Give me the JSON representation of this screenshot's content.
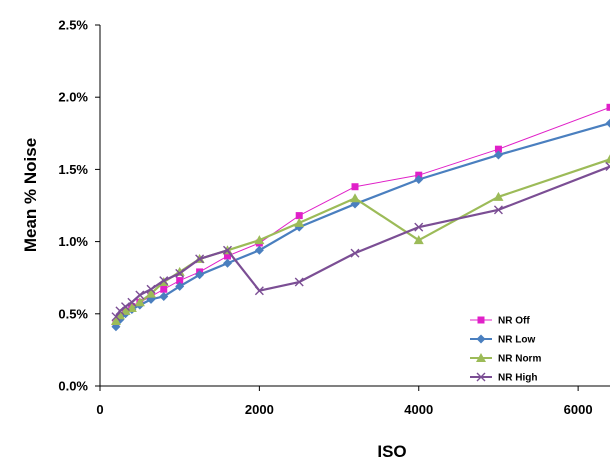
{
  "chart_data": {
    "type": "line",
    "xlabel": "ISO",
    "ylabel": "Mean % Noise",
    "xlim": [
      0,
      6400
    ],
    "ylim": [
      0,
      2.5
    ],
    "x_ticks": [
      0,
      2000,
      4000,
      6000
    ],
    "y_ticks": [
      0.0,
      0.5,
      1.0,
      1.5,
      2.0,
      2.5
    ],
    "y_tick_labels": [
      "0.0%",
      "0.5%",
      "1.0%",
      "1.5%",
      "2.0%",
      "2.5%"
    ],
    "grid": false,
    "legend_position": "bottom-right",
    "series": [
      {
        "name": "NR Off",
        "color": "#e020c8",
        "marker": "square",
        "x": [
          200,
          250,
          320,
          400,
          500,
          640,
          800,
          1000,
          1250,
          1600,
          2000,
          2500,
          3200,
          4000,
          5000,
          6400
        ],
        "y": [
          0.43,
          0.48,
          0.52,
          0.55,
          0.58,
          0.62,
          0.67,
          0.73,
          0.79,
          0.9,
          0.99,
          1.18,
          1.38,
          1.46,
          1.64,
          1.93
        ]
      },
      {
        "name": "NR Low",
        "color": "#4a7fbf",
        "marker": "diamond",
        "x": [
          200,
          250,
          320,
          400,
          500,
          640,
          800,
          1000,
          1250,
          1600,
          2000,
          2500,
          3200,
          4000,
          5000,
          6400
        ],
        "y": [
          0.41,
          0.46,
          0.5,
          0.53,
          0.56,
          0.6,
          0.62,
          0.69,
          0.77,
          0.85,
          0.94,
          1.1,
          1.26,
          1.43,
          1.6,
          1.82
        ]
      },
      {
        "name": "NR Norm",
        "color": "#9cbb58",
        "marker": "triangle",
        "x": [
          200,
          250,
          320,
          400,
          500,
          640,
          800,
          1000,
          1250,
          1600,
          2000,
          2500,
          3200,
          4000,
          5000,
          6400
        ],
        "y": [
          0.45,
          0.49,
          0.52,
          0.54,
          0.58,
          0.64,
          0.72,
          0.79,
          0.88,
          0.94,
          1.01,
          1.13,
          1.3,
          1.01,
          1.31,
          1.57
        ]
      },
      {
        "name": "NR High",
        "color": "#7b4e94",
        "marker": "x",
        "x": [
          200,
          250,
          320,
          400,
          500,
          640,
          800,
          1000,
          1250,
          1600,
          2000,
          2500,
          3200,
          4000,
          5000,
          6400
        ],
        "y": [
          0.48,
          0.52,
          0.55,
          0.58,
          0.63,
          0.67,
          0.73,
          0.78,
          0.88,
          0.94,
          0.66,
          0.72,
          0.92,
          1.1,
          1.22,
          1.52
        ]
      }
    ]
  }
}
